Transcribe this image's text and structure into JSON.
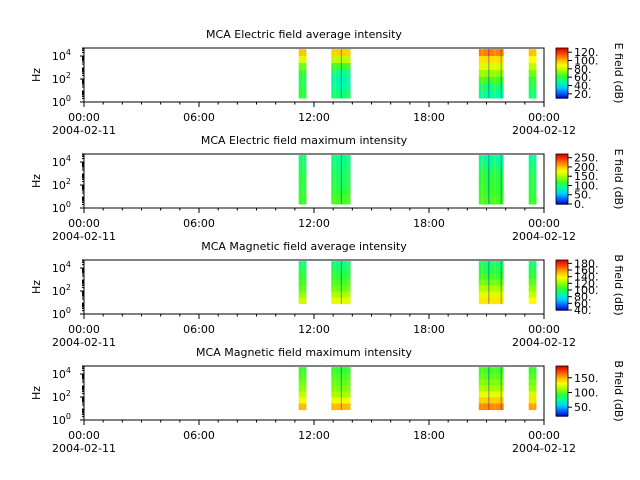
{
  "x_ticks": [
    "00:00",
    "06:00",
    "12:00",
    "18:00",
    "00:00"
  ],
  "x_date_start": "2004-02-11",
  "x_date_end": "2004-02-12",
  "ylabel": "Hz",
  "y_ticks": [
    "10^0",
    "10^2",
    "10^4"
  ],
  "colormap": [
    "#0000c8",
    "#0060ff",
    "#00d0ff",
    "#00ffa0",
    "#30ff30",
    "#a0ff00",
    "#ffff00",
    "#ffb000",
    "#ff5000",
    "#e00000"
  ],
  "chart_data": [
    {
      "type": "heatmap",
      "title": "MCA  Electric field average intensity",
      "xlabel": "",
      "ylabel": "Hz",
      "x_range_hours": [
        0,
        24
      ],
      "y_scale": "log",
      "y_range": [
        1,
        50000
      ],
      "colorbar": {
        "label": "E field (dB)",
        "range": [
          10,
          130
        ],
        "ticks": [
          20,
          40,
          60,
          80,
          100,
          120
        ],
        "tick_labels": [
          "20.",
          "40.",
          "60.",
          "80.",
          "100.",
          "120."
        ]
      },
      "segments": [
        {
          "start": 11.2,
          "end": 11.6,
          "profile": [
            62,
            60,
            58,
            62,
            70,
            85,
            100
          ]
        },
        {
          "start": 12.9,
          "end": 13.9,
          "profile": [
            55,
            50,
            48,
            52,
            65,
            80,
            98
          ]
        },
        {
          "start": 20.6,
          "end": 21.9,
          "profile": [
            50,
            55,
            65,
            75,
            85,
            95,
            110
          ]
        },
        {
          "start": 23.2,
          "end": 23.6,
          "profile": [
            55,
            58,
            62,
            70,
            80,
            90,
            100
          ]
        }
      ]
    },
    {
      "type": "heatmap",
      "title": "MCA  Electric field maximum intensity",
      "xlabel": "",
      "ylabel": "Hz",
      "x_range_hours": [
        0,
        24
      ],
      "y_scale": "log",
      "y_range": [
        1,
        50000
      ],
      "colorbar": {
        "label": "E field (dB)",
        "range": [
          0,
          270
        ],
        "ticks": [
          0,
          50,
          100,
          150,
          200,
          250
        ],
        "tick_labels": [
          "0.",
          "50.",
          "100.",
          "150.",
          "200.",
          "250."
        ]
      },
      "segments": [
        {
          "start": 11.2,
          "end": 11.6,
          "profile": [
            120,
            118,
            115,
            112,
            110,
            105,
            100
          ]
        },
        {
          "start": 12.9,
          "end": 13.9,
          "profile": [
            125,
            120,
            112,
            108,
            105,
            100,
            95
          ]
        },
        {
          "start": 20.6,
          "end": 21.9,
          "profile": [
            125,
            122,
            118,
            115,
            110,
            100,
            90
          ]
        },
        {
          "start": 23.2,
          "end": 23.6,
          "profile": [
            120,
            115,
            112,
            110,
            105,
            98,
            90
          ]
        }
      ]
    },
    {
      "type": "heatmap",
      "title": "MCA  Magnetic field average intensity",
      "xlabel": "",
      "ylabel": "Hz",
      "x_range_hours": [
        0,
        24
      ],
      "y_scale": "log",
      "y_range": [
        1,
        50000
      ],
      "colorbar": {
        "label": "B field (dB)",
        "range": [
          40,
          190
        ],
        "ticks": [
          40,
          60,
          80,
          100,
          120,
          140,
          160,
          180
        ],
        "tick_labels": [
          "40.",
          "60.",
          "80.",
          "100.",
          "120.",
          "140.",
          "160.",
          "180."
        ]
      },
      "segments": [
        {
          "start": 11.2,
          "end": 11.6,
          "profile": [
            130,
            120,
            112,
            108,
            105,
            100,
            95
          ]
        },
        {
          "start": 12.9,
          "end": 13.9,
          "profile": [
            135,
            125,
            115,
            110,
            105,
            100,
            95
          ]
        },
        {
          "start": 20.6,
          "end": 21.9,
          "profile": [
            145,
            135,
            125,
            115,
            108,
            102,
            98
          ]
        },
        {
          "start": 23.2,
          "end": 23.6,
          "profile": [
            140,
            130,
            120,
            112,
            106,
            100,
            96
          ]
        }
      ]
    },
    {
      "type": "heatmap",
      "title": "MCA  Magnetic field maximum intensity",
      "xlabel": "",
      "ylabel": "Hz",
      "x_range_hours": [
        0,
        24
      ],
      "y_scale": "log",
      "y_range": [
        1,
        50000
      ],
      "colorbar": {
        "label": "B field (dB)",
        "range": [
          20,
          190
        ],
        "ticks": [
          50,
          100,
          150
        ],
        "tick_labels": [
          "50.",
          "100.",
          "150."
        ]
      },
      "segments": [
        {
          "start": 11.2,
          "end": 11.6,
          "profile": [
            150,
            135,
            120,
            110,
            105,
            100,
            95
          ]
        },
        {
          "start": 12.9,
          "end": 13.9,
          "profile": [
            150,
            130,
            115,
            108,
            104,
            100,
            95
          ]
        },
        {
          "start": 20.6,
          "end": 21.9,
          "profile": [
            160,
            145,
            128,
            115,
            108,
            102,
            98
          ]
        },
        {
          "start": 23.2,
          "end": 23.6,
          "profile": [
            155,
            140,
            125,
            112,
            106,
            100,
            96
          ]
        }
      ]
    }
  ]
}
